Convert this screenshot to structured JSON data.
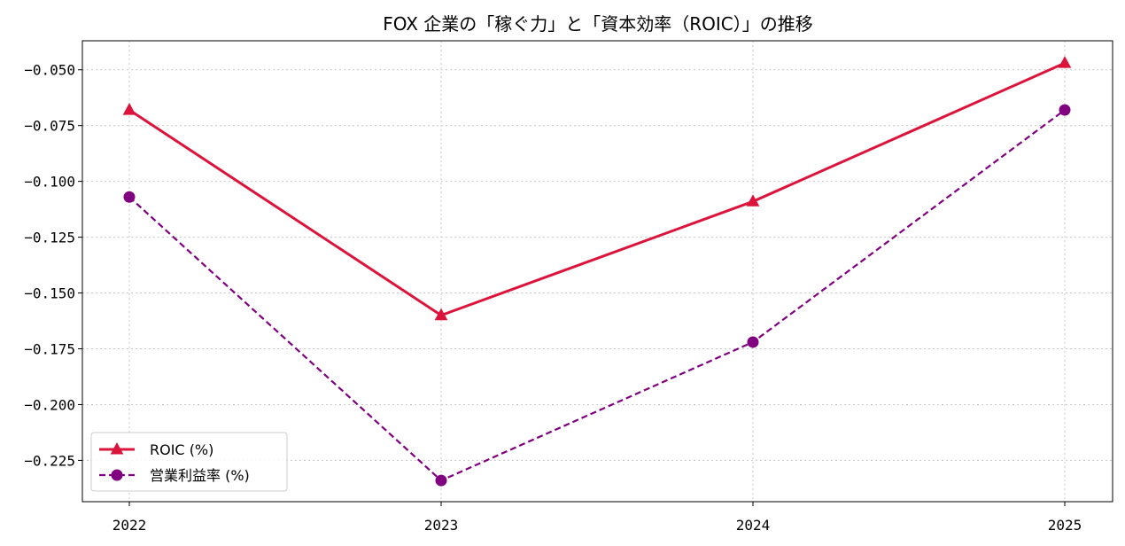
{
  "chart_data": {
    "type": "line",
    "title": "FOX 企業の「稼ぐ力」と「資本効率（ROIC）」の推移",
    "xlabel": "",
    "ylabel": "",
    "categories": [
      "2022",
      "2023",
      "2024",
      "2025"
    ],
    "ylim": [
      -0.2435,
      -0.037
    ],
    "yticks": [
      -0.05,
      -0.075,
      -0.1,
      -0.125,
      -0.15,
      -0.175,
      -0.2,
      -0.225
    ],
    "ytick_labels": [
      "−0.050",
      "−0.075",
      "−0.100",
      "−0.125",
      "−0.150",
      "−0.175",
      "−0.200",
      "−0.225"
    ],
    "grid": true,
    "legend_position": "lower-left",
    "series": [
      {
        "name": "ROIC (%)",
        "values": [
          -0.068,
          -0.16,
          -0.109,
          -0.047
        ],
        "color": "#dc143c",
        "line_style": "solid",
        "marker": "triangle"
      },
      {
        "name": "営業利益率 (%)",
        "values": [
          -0.107,
          -0.234,
          -0.172,
          -0.068
        ],
        "color": "#800080",
        "line_style": "dashed",
        "marker": "circle"
      }
    ]
  }
}
